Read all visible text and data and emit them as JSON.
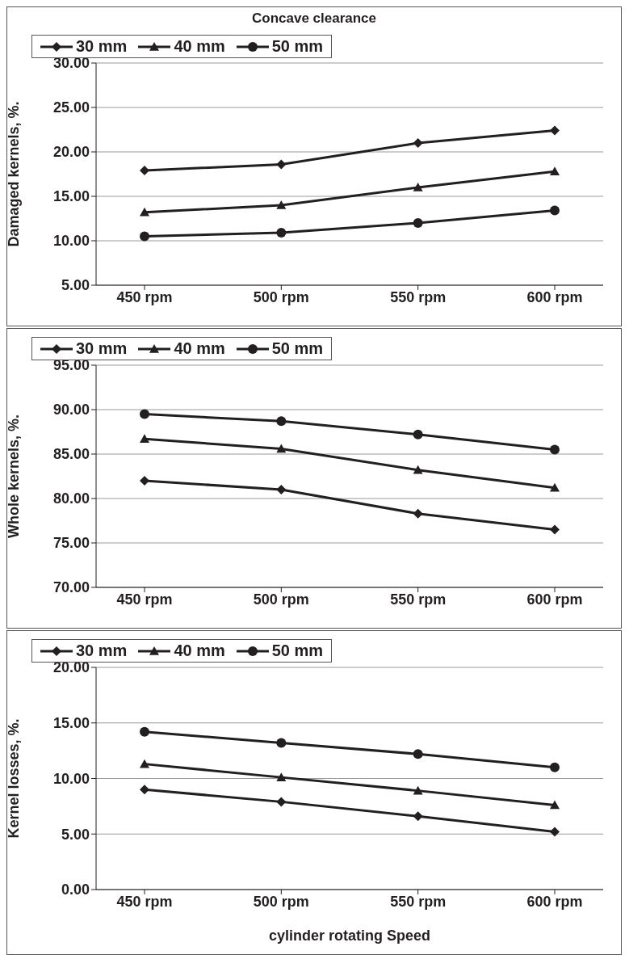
{
  "chart_data": [
    {
      "type": "line",
      "title": "Concave clearance",
      "ylabel": "Damaged kernels, %.",
      "categories": [
        "450 rpm",
        "500 rpm",
        "550 rpm",
        "600 rpm"
      ],
      "ylim": [
        5,
        30
      ],
      "yticks": [
        {
          "value": 5,
          "label": "5.00"
        },
        {
          "value": 10,
          "label": "10.00"
        },
        {
          "value": 15,
          "label": "15.00"
        },
        {
          "value": 20,
          "label": "20.00"
        },
        {
          "value": 25,
          "label": "25.00"
        },
        {
          "value": 30,
          "label": "30.00"
        }
      ],
      "grid": "y",
      "legend": "top",
      "line_style": "solid",
      "series": [
        {
          "name": "30 mm",
          "color": "#231f20",
          "marker": "diamond",
          "values": [
            17.9,
            18.6,
            21.0,
            22.4
          ]
        },
        {
          "name": "40 mm",
          "color": "#231f20",
          "marker": "triangle",
          "values": [
            13.2,
            14.0,
            16.0,
            17.8
          ]
        },
        {
          "name": "50 mm",
          "color": "#231f20",
          "marker": "circle",
          "values": [
            10.5,
            10.9,
            12.0,
            13.4
          ]
        }
      ]
    },
    {
      "type": "line",
      "ylabel": "Whole kernels, %.",
      "categories": [
        "450 rpm",
        "500 rpm",
        "550 rpm",
        "600 rpm"
      ],
      "ylim": [
        70,
        95
      ],
      "yticks": [
        {
          "value": 70,
          "label": "70.00"
        },
        {
          "value": 75,
          "label": "75.00"
        },
        {
          "value": 80,
          "label": "80.00"
        },
        {
          "value": 85,
          "label": "85.00"
        },
        {
          "value": 90,
          "label": "90.00"
        },
        {
          "value": 95,
          "label": "95.00"
        }
      ],
      "grid": "y",
      "legend": "top",
      "line_style": "solid",
      "series": [
        {
          "name": "30 mm",
          "color": "#231f20",
          "marker": "diamond",
          "values": [
            82.0,
            81.0,
            78.3,
            76.5
          ]
        },
        {
          "name": "40 mm",
          "color": "#231f20",
          "marker": "triangle",
          "values": [
            86.7,
            85.6,
            83.2,
            81.2
          ]
        },
        {
          "name": "50 mm",
          "color": "#231f20",
          "marker": "circle",
          "values": [
            89.5,
            88.7,
            87.2,
            85.5
          ]
        }
      ]
    },
    {
      "type": "line",
      "ylabel": "Kernel losses, %.",
      "xlabel": "cylinder rotating Speed",
      "categories": [
        "450 rpm",
        "500 rpm",
        "550 rpm",
        "600 rpm"
      ],
      "ylim": [
        0,
        20
      ],
      "yticks": [
        {
          "value": 0,
          "label": "0.00"
        },
        {
          "value": 5,
          "label": "5.00"
        },
        {
          "value": 10,
          "label": "10.00"
        },
        {
          "value": 15,
          "label": "15.00"
        },
        {
          "value": 20,
          "label": "20.00"
        }
      ],
      "grid": "y",
      "legend": "top",
      "line_style": "solid",
      "series": [
        {
          "name": "30 mm",
          "color": "#231f20",
          "marker": "diamond",
          "values": [
            9.0,
            7.9,
            6.6,
            5.2
          ]
        },
        {
          "name": "40 mm",
          "color": "#231f20",
          "marker": "triangle",
          "values": [
            11.3,
            10.1,
            8.9,
            7.6
          ]
        },
        {
          "name": "50 mm",
          "color": "#231f20",
          "marker": "circle",
          "values": [
            14.2,
            13.2,
            12.2,
            11.0
          ]
        }
      ]
    }
  ]
}
